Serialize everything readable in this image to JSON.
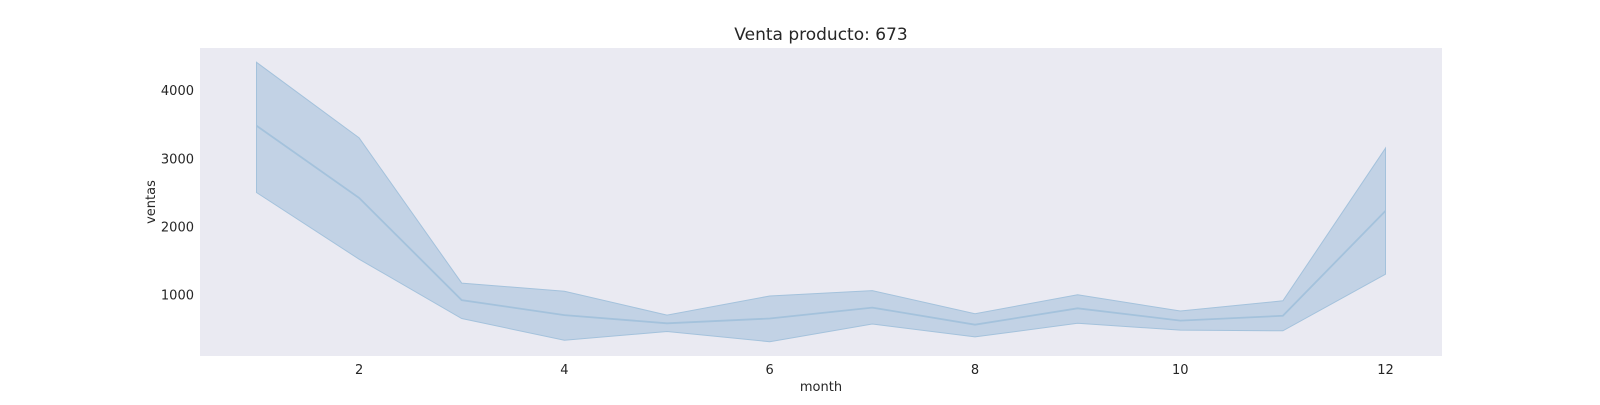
{
  "chart_data": {
    "type": "line",
    "title": "Venta producto: 673",
    "xlabel": "month",
    "ylabel": "ventas",
    "x": [
      1,
      2,
      3,
      4,
      5,
      6,
      7,
      8,
      9,
      10,
      11,
      12
    ],
    "series": [
      {
        "values": [
          3480,
          2420,
          920,
          700,
          580,
          650,
          810,
          560,
          800,
          620,
          690,
          2230
        ],
        "ci_lower": [
          2500,
          1520,
          650,
          330,
          460,
          310,
          570,
          380,
          580,
          480,
          470,
          1300
        ],
        "ci_upper": [
          4410,
          3300,
          1170,
          1050,
          700,
          980,
          1060,
          720,
          1000,
          760,
          910,
          3150
        ],
        "color": "#a4c2dc"
      }
    ],
    "xticks": [
      2,
      4,
      6,
      8,
      10,
      12
    ],
    "yticks": [
      1000,
      2000,
      3000,
      4000
    ],
    "xlim": [
      0.45,
      12.55
    ],
    "ylim": [
      100,
      4620
    ],
    "grid": false,
    "colors": {
      "plot_background": "#eaeaf2",
      "band_fill": "#b4c9e0",
      "line": "#a4c2dc"
    }
  }
}
